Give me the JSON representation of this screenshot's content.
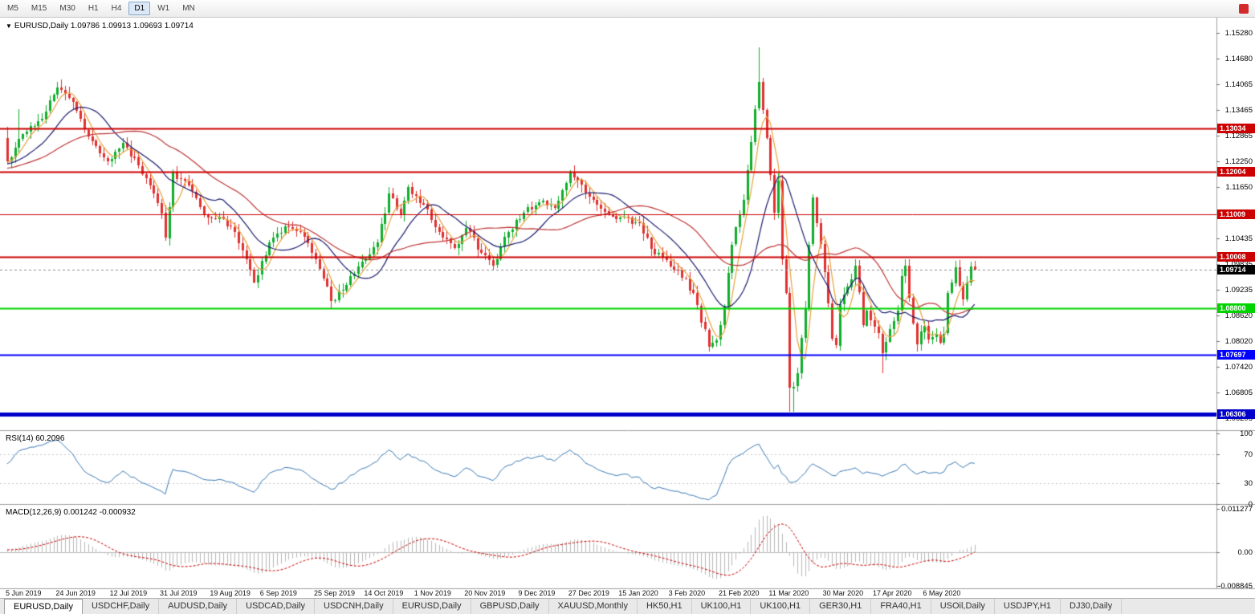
{
  "toolbar": {
    "timeframes": [
      "M5",
      "M15",
      "M30",
      "H1",
      "H4",
      "D1",
      "W1",
      "MN"
    ],
    "active_timeframe": "D1"
  },
  "chart_title": {
    "symbol_line": "EURUSD,Daily 1.09786 1.09913 1.09693 1.09714"
  },
  "indicators": {
    "rsi_label": "RSI(14) 60.2096",
    "macd_label": "MACD(12,26,9) 0.001242 -0.000932"
  },
  "tabs": [
    "EURUSD,Daily",
    "USDCHF,Daily",
    "AUDUSD,Daily",
    "USDCAD,Daily",
    "USDCNH,Daily",
    "EURUSD,Daily",
    "GBPUSD,Daily",
    "XAUUSD,Monthly",
    "HK50,H1",
    "UK100,H1",
    "UK100,H1",
    "GER30,H1",
    "FRA40,H1",
    "USOil,Daily",
    "USDJPY,H1",
    "DJ30,Daily"
  ],
  "active_tab_index": 0,
  "colors": {
    "candle_up": "#0fae2b",
    "candle_down": "#e03131",
    "level_red": "#cc0000",
    "level_green": "#00d300",
    "level_blue": "#0000ff",
    "current_price_tag": "#000000"
  },
  "chart_data": {
    "type": "candlestick",
    "symbol": "EURUSD",
    "timeframe": "Daily",
    "current_bar": {
      "open": 1.09786,
      "high": 1.09913,
      "low": 1.09693,
      "close": 1.09714
    },
    "current_price": {
      "value": 1.09714,
      "label": "1.09714"
    },
    "price_axis_ticks": [
      "1.15280",
      "1.14680",
      "1.14065",
      "1.13465",
      "1.12865",
      "1.12250",
      "1.11650",
      "1.11035",
      "1.10435",
      "1.09835",
      "1.09235",
      "1.08620",
      "1.08020",
      "1.07420",
      "1.06805",
      "1.06205"
    ],
    "horizontal_levels": [
      {
        "price": 1.13034,
        "label": "1.13034",
        "color": "#cc0000",
        "width": 2
      },
      {
        "price": 1.12004,
        "label": "1.12004",
        "color": "#cc0000",
        "width": 2
      },
      {
        "price": 1.11009,
        "label": "1.11009",
        "color": "#cc0000",
        "width": 1
      },
      {
        "price": 1.10008,
        "label": "1.10008",
        "color": "#cc0000",
        "width": 2
      },
      {
        "price": 1.088,
        "label": "1.08800",
        "color": "#00d300",
        "width": 2
      },
      {
        "price": 1.07697,
        "label": "1.07697",
        "color": "#0000ff",
        "width": 2
      },
      {
        "price": 1.06306,
        "label": "1.06306",
        "color": "#0000cc",
        "width": 5
      }
    ],
    "candles": {
      "count": 252,
      "anchors": [
        [
          0,
          1.1225
        ],
        [
          4,
          1.129
        ],
        [
          9,
          1.1325
        ],
        [
          13,
          1.14
        ],
        [
          17,
          1.1365
        ],
        [
          21,
          1.1285
        ],
        [
          26,
          1.1226
        ],
        [
          30,
          1.127
        ],
        [
          34,
          1.1215
        ],
        [
          38,
          1.115
        ],
        [
          40,
          1.1104
        ],
        [
          41,
          1.1045
        ],
        [
          43,
          1.12
        ],
        [
          47,
          1.117
        ],
        [
          51,
          1.11
        ],
        [
          55,
          1.1095
        ],
        [
          59,
          1.106
        ],
        [
          62,
          1.0995
        ],
        [
          64,
          1.094
        ],
        [
          68,
          1.1035
        ],
        [
          72,
          1.1072
        ],
        [
          76,
          1.106
        ],
        [
          79,
          1.101
        ],
        [
          82,
          1.095
        ],
        [
          84,
          1.0896
        ],
        [
          88,
          1.0935
        ],
        [
          92,
          1.099
        ],
        [
          96,
          1.1035
        ],
        [
          99,
          1.115
        ],
        [
          102,
          1.11
        ],
        [
          104,
          1.1165
        ],
        [
          108,
          1.1125
        ],
        [
          112,
          1.106
        ],
        [
          116,
          1.1021
        ],
        [
          119,
          1.1068
        ],
        [
          123,
          1.101
        ],
        [
          126,
          1.0981
        ],
        [
          130,
          1.106
        ],
        [
          134,
          1.1105
        ],
        [
          138,
          1.113
        ],
        [
          142,
          1.1115
        ],
        [
          146,
          1.12
        ],
        [
          149,
          1.117
        ],
        [
          152,
          1.1135
        ],
        [
          156,
          1.11
        ],
        [
          160,
          1.1095
        ],
        [
          164,
          1.108
        ],
        [
          167,
          1.102
        ],
        [
          170,
          1.1
        ],
        [
          174,
          1.097
        ],
        [
          178,
          1.0915
        ],
        [
          182,
          1.079
        ],
        [
          184,
          1.0805
        ],
        [
          186,
          1.0885
        ],
        [
          188,
          1.103
        ],
        [
          191,
          1.1135
        ],
        [
          195,
          1.1412
        ],
        [
          197,
          1.128
        ],
        [
          199,
          1.1105
        ],
        [
          200,
          1.118
        ],
        [
          201,
          1.0995
        ],
        [
          202,
          1.0915
        ],
        [
          203,
          1.0692
        ],
        [
          204,
          1.0695
        ],
        [
          205,
          1.0726
        ],
        [
          207,
          1.088
        ],
        [
          208,
          1.103
        ],
        [
          209,
          1.114
        ],
        [
          211,
          1.1031
        ],
        [
          212,
          1.0965
        ],
        [
          214,
          1.0809
        ],
        [
          215,
          1.0792
        ],
        [
          216,
          1.089
        ],
        [
          218,
          1.093
        ],
        [
          220,
          1.098
        ],
        [
          222,
          1.084
        ],
        [
          223,
          1.0875
        ],
        [
          226,
          1.082
        ],
        [
          227,
          1.0775
        ],
        [
          229,
          1.083
        ],
        [
          231,
          1.0874
        ],
        [
          232,
          1.0955
        ],
        [
          233,
          1.098
        ],
        [
          234,
          1.0905
        ],
        [
          236,
          1.0795
        ],
        [
          238,
          1.0839
        ],
        [
          239,
          1.0807
        ],
        [
          241,
          1.0818
        ],
        [
          242,
          1.08
        ],
        [
          243,
          1.082
        ],
        [
          244,
          1.0915
        ],
        [
          246,
          1.0977
        ],
        [
          248,
          1.09
        ],
        [
          249,
          1.094
        ],
        [
          250,
          1.0978
        ],
        [
          251,
          1.0971
        ]
      ],
      "special_wicks": [
        [
          0,
          "high",
          1.1307
        ],
        [
          3,
          "high",
          1.1348
        ],
        [
          13,
          "high",
          1.1412
        ],
        [
          84,
          "low",
          1.0879
        ],
        [
          182,
          "low",
          1.0778
        ],
        [
          195,
          "high",
          1.1495
        ],
        [
          203,
          "low",
          1.0636
        ],
        [
          204,
          "low",
          1.0635
        ],
        [
          209,
          "high",
          1.1148
        ],
        [
          227,
          "low",
          1.0727
        ],
        [
          232,
          "high",
          1.0972
        ]
      ]
    },
    "moving_averages": [
      {
        "period": 5,
        "color": "#e8a33d"
      },
      {
        "period": 14,
        "color": "#1b1b6f"
      },
      {
        "period": 34,
        "color": "#bf3535"
      }
    ],
    "rsi": {
      "period": 14,
      "current": 60.2096,
      "axis_ticks": [
        100,
        70,
        30,
        0
      ],
      "guide_levels": [
        70,
        30
      ],
      "color": "#3c7ab5"
    },
    "macd": {
      "fast": 12,
      "slow": 26,
      "signal": 9,
      "main_current": 0.001242,
      "signal_current": -0.000932,
      "axis_top": 0.011277,
      "axis_bottom": -0.008845,
      "axis_top_label": "0.011277",
      "axis_zero_label": "0.00",
      "axis_bottom_label": "-0.008845",
      "hist_color": "#b8b8b8",
      "signal_color": "#cc0000"
    },
    "date_axis": {
      "labels": [
        "5 Jun 2019",
        "24 Jun 2019",
        "12 Jul 2019",
        "31 Jul 2019",
        "19 Aug 2019",
        "6 Sep 2019",
        "25 Sep 2019",
        "14 Oct 2019",
        "1 Nov 2019",
        "20 Nov 2019",
        "9 Dec 2019",
        "27 Dec 2019",
        "15 Jan 2020",
        "3 Feb 2020",
        "21 Feb 2020",
        "11 Mar 2020",
        "30 Mar 2020",
        "17 Apr 2020",
        "6 May 2020"
      ],
      "indices": [
        0,
        13,
        27,
        40,
        53,
        66,
        80,
        93,
        106,
        119,
        133,
        146,
        159,
        172,
        185,
        198,
        212,
        225,
        238
      ]
    }
  }
}
